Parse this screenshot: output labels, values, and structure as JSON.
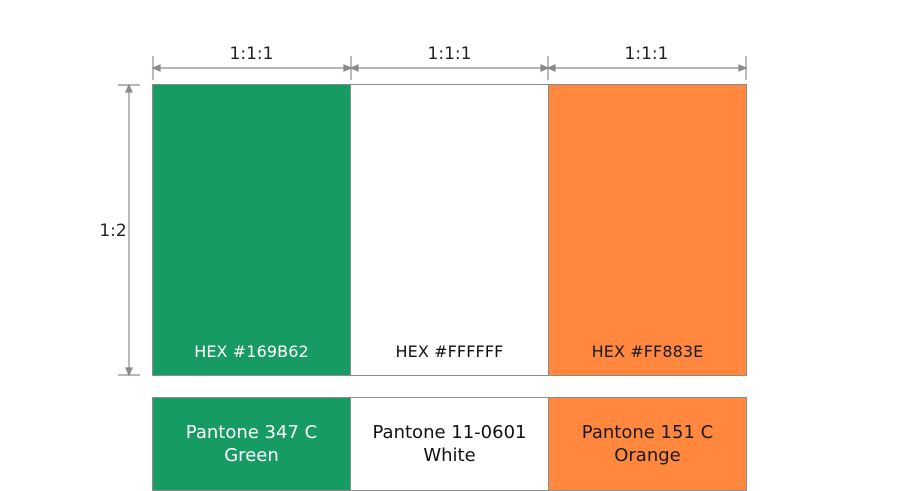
{
  "colors": {
    "green": "#169B62",
    "white": "#FFFFFF",
    "orange": "#FF883E",
    "dimension_line": "#8a8a8a"
  },
  "dimensions": {
    "stripe_ratio_labels": [
      "1:1:1",
      "1:1:1",
      "1:1:1"
    ],
    "flag_ratio_label": "1:2"
  },
  "stripes": [
    {
      "hex_label": "HEX #169B62",
      "color": "#169B62",
      "text_color": "#ffffff"
    },
    {
      "hex_label": "HEX #FFFFFF",
      "color": "#FFFFFF",
      "text_color": "#111111"
    },
    {
      "hex_label": "HEX #FF883E",
      "color": "#FF883E",
      "text_color": "#1a1a1a"
    }
  ],
  "pantone": [
    {
      "line1": "Pantone 347 C",
      "line2": "Green",
      "color": "#169B62",
      "text_color": "#ffffff"
    },
    {
      "line1": "Pantone 11-0601",
      "line2": "White",
      "color": "#FFFFFF",
      "text_color": "#111111"
    },
    {
      "line1": "Pantone 151 C",
      "line2": "Orange",
      "color": "#FF883E",
      "text_color": "#1a1a1a"
    }
  ]
}
